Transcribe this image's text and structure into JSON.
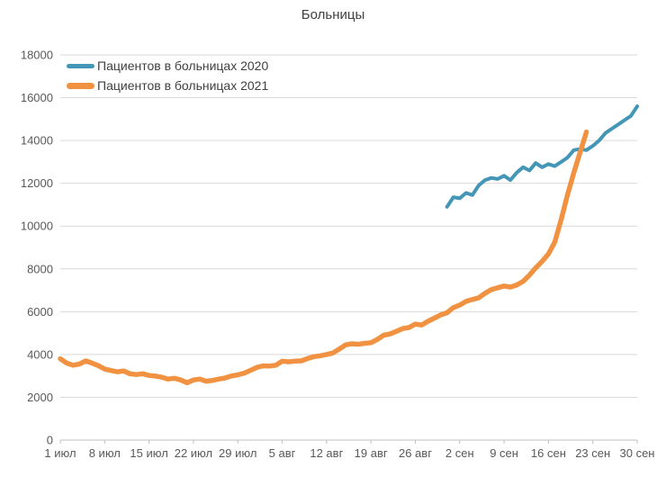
{
  "title": "Больницы",
  "styles": {
    "background": "#ffffff",
    "grid_color": "#d9d9d9",
    "axis_line_color": "#bfbfbf",
    "tick_color": "#bfbfbf",
    "axis_text_color": "#595959",
    "title_color": "#404040",
    "legend_text_color": "#404040"
  },
  "chart_data": {
    "type": "line",
    "title": "Больницы",
    "xlabel": "",
    "ylabel": "",
    "ylim": [
      0,
      18000
    ],
    "y_ticks": [
      0,
      2000,
      4000,
      6000,
      8000,
      10000,
      12000,
      14000,
      16000,
      18000
    ],
    "y_tick_labels": [
      "0",
      "2000",
      "4000",
      "6000",
      "8000",
      "10000",
      "12000",
      "14000",
      "16000",
      "18000"
    ],
    "x_domain_days": [
      0,
      91
    ],
    "x_tick_days": [
      0,
      7,
      14,
      21,
      28,
      35,
      42,
      49,
      56,
      63,
      70,
      77,
      84,
      91
    ],
    "x_tick_labels": [
      "1 июл",
      "8 июл",
      "15 июл",
      "22 июл",
      "29 июл",
      "5 авг",
      "12 авг",
      "19 авг",
      "26 авг",
      "2 сен",
      "9 сен",
      "16 сен",
      "23 сен",
      "30 сен"
    ],
    "grid": "horizontal-only",
    "legend_position": "top-left-inside",
    "series": [
      {
        "name": "Пациентов в больницах 2020",
        "color": "#4396b5",
        "start_day": 61,
        "start_label": "31 авг",
        "end_label": "30 сен",
        "values": [
          10900,
          11350,
          11300,
          11550,
          11450,
          11900,
          12150,
          12250,
          12200,
          12350,
          12150,
          12500,
          12750,
          12600,
          12950,
          12750,
          12900,
          12800,
          13000,
          13200,
          13550,
          13600,
          13550,
          13750,
          14000,
          14350,
          14550,
          14750,
          14950,
          15150,
          15600
        ]
      },
      {
        "name": "Пациентов в больницах 2021",
        "color": "#f09241",
        "start_day": 0,
        "start_label": "1 июл",
        "end_label": "22 сен",
        "values": [
          3800,
          3600,
          3500,
          3550,
          3700,
          3600,
          3480,
          3320,
          3250,
          3190,
          3230,
          3100,
          3060,
          3100,
          3020,
          2990,
          2940,
          2850,
          2890,
          2810,
          2680,
          2810,
          2850,
          2750,
          2790,
          2850,
          2900,
          3000,
          3050,
          3130,
          3260,
          3400,
          3470,
          3460,
          3500,
          3690,
          3660,
          3690,
          3700,
          3810,
          3900,
          3940,
          4000,
          4070,
          4250,
          4450,
          4500,
          4480,
          4520,
          4550,
          4700,
          4900,
          4960,
          5080,
          5210,
          5260,
          5420,
          5380,
          5550,
          5700,
          5850,
          5950,
          6190,
          6310,
          6480,
          6570,
          6650,
          6860,
          7030,
          7120,
          7200,
          7150,
          7250,
          7420,
          7710,
          8050,
          8350,
          8700,
          9250,
          10300,
          11450,
          12500,
          13450,
          14400
        ]
      }
    ]
  }
}
